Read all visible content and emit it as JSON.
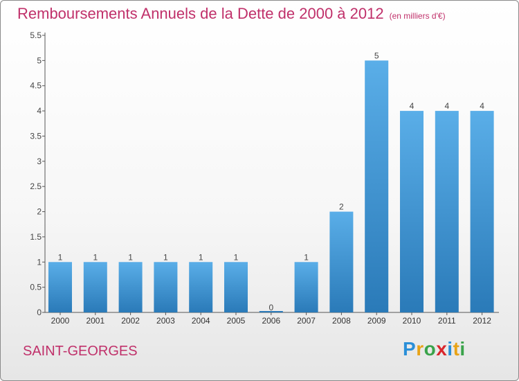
{
  "header": {
    "title": "Remboursements Annuels de la Dette de 2000 à 2012",
    "unit": "(en milliers d'€)"
  },
  "footer": {
    "commune": "SAINT-GEORGES",
    "logo": "Proxiti"
  },
  "colors": {
    "title": "#c0306a",
    "bar_top": "#5aaee8",
    "bar_bottom": "#2a7ab8"
  },
  "chart_data": {
    "type": "bar",
    "title": "Remboursements Annuels de la Dette de 2000 à 2012",
    "subtitle": "(en milliers d'€)",
    "xlabel": "",
    "ylabel": "",
    "categories": [
      "2000",
      "2001",
      "2002",
      "2003",
      "2004",
      "2005",
      "2006",
      "2007",
      "2008",
      "2009",
      "2010",
      "2011",
      "2012"
    ],
    "values": [
      1,
      1,
      1,
      1,
      1,
      1,
      0,
      1,
      2,
      5,
      4,
      4,
      4
    ],
    "value_labels": [
      "1",
      "1",
      "1",
      "1",
      "1",
      "1",
      "0",
      "1",
      "2",
      "5",
      "4",
      "4",
      "4"
    ],
    "ylim": [
      0,
      5.5
    ],
    "yticks": [
      "0",
      "0.5",
      "1",
      "1.5",
      "2",
      "2.5",
      "3",
      "3.5",
      "4",
      "4.5",
      "5",
      "5.5"
    ],
    "grid": false,
    "legend": "none"
  }
}
